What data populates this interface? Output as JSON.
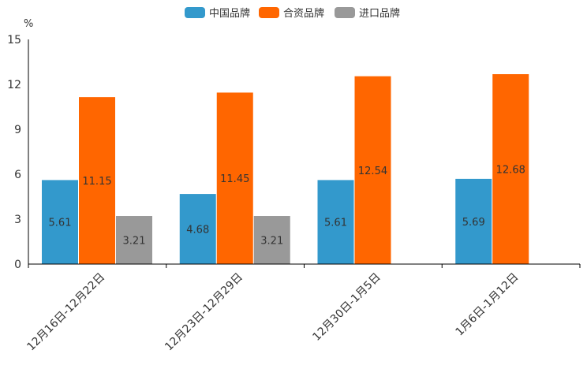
{
  "chart_data": {
    "type": "bar",
    "title": "",
    "xlabel": "",
    "ylabel": "%",
    "ylim": [
      0,
      15
    ],
    "yticks": [
      0,
      3,
      6,
      9,
      12,
      15
    ],
    "grid": false,
    "legend_position": "top-center",
    "categories": [
      "12月16日-12月22日",
      "12月23日-12月29日",
      "12月30日-1月5日",
      "1月6日-1月12日"
    ],
    "series": [
      {
        "name": "中国品牌",
        "color": "#3399cc",
        "values": [
          5.61,
          4.68,
          5.61,
          5.69
        ]
      },
      {
        "name": "合资品牌",
        "color": "#ff6600",
        "values": [
          11.15,
          11.45,
          12.54,
          12.68
        ]
      },
      {
        "name": "进口品牌",
        "color": "#999999",
        "values": [
          3.21,
          3.21,
          null,
          null
        ]
      }
    ],
    "data_labels": [
      [
        "5.61",
        "4.68",
        "5.61",
        "5.69"
      ],
      [
        "11.15",
        "11.45",
        "12.54",
        "12.68"
      ],
      [
        "3.21",
        "3.21",
        null,
        null
      ]
    ]
  }
}
